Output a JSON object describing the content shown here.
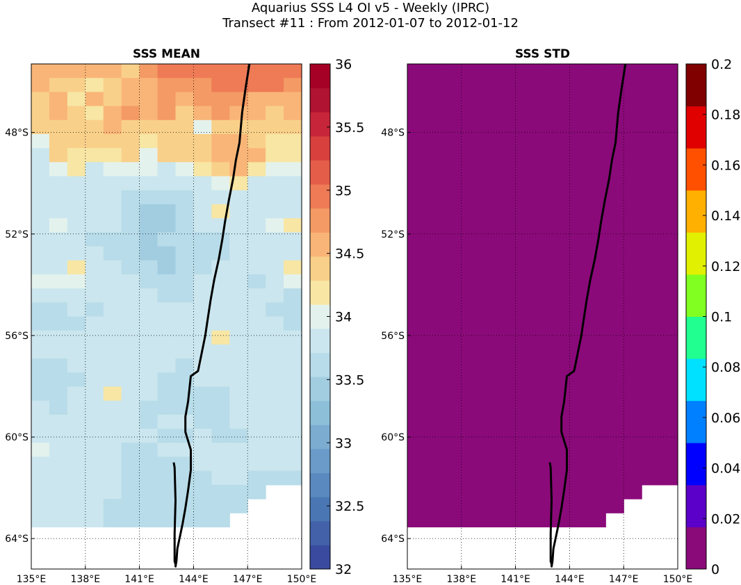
{
  "title_line1": "Aquarius SSS L4 OI v5 - Weekly (IPRC)",
  "title_line2": "Transect #11 : From 2012-01-07 to 2012-01-12",
  "chart_data": [
    {
      "type": "heatmap",
      "title": "SSS MEAN",
      "x_label_values": [
        135,
        138,
        141,
        144,
        147,
        150
      ],
      "x_tick_labels": [
        "135°E",
        "138°E",
        "141°E",
        "144°E",
        "147°E",
        "150°E"
      ],
      "y_label_values": [
        -48,
        -52,
        -56,
        -60,
        -64
      ],
      "y_tick_labels": [
        "48°S",
        "52°S",
        "56°S",
        "60°S",
        "64°S"
      ],
      "xlim": [
        135,
        150
      ],
      "ylim": [
        -65.2,
        -45.3
      ],
      "grid": true,
      "colorbar": {
        "min": 32,
        "max": 36,
        "ticks": [
          32,
          32.5,
          33,
          33.5,
          34,
          34.5,
          35,
          35.5,
          36
        ],
        "tick_labels": [
          "32",
          "32.5",
          "33",
          "33.5",
          "34",
          "34.5",
          "35",
          "35.5",
          "36"
        ],
        "colors": [
          "#3a4b9f",
          "#4261a9",
          "#4a77b4",
          "#5a89bf",
          "#6a9bc9",
          "#7cadd1",
          "#8dbfd9",
          "#a2cde1",
          "#b8dce9",
          "#cbe6ee",
          "#e4f2ed",
          "#f7e6a4",
          "#f9d08a",
          "#f9b577",
          "#f49a65",
          "#ee7b56",
          "#e45d49",
          "#d8403e",
          "#c7263a",
          "#b01331",
          "#a50026"
        ]
      },
      "value_rows_north_to_south": [
        [
          34.6,
          34.6,
          34.5,
          34.5,
          34.5,
          34.4,
          34.8,
          34.9,
          34.9,
          34.9,
          34.9,
          35.0,
          35.0,
          35.0,
          35.0
        ],
        [
          34.5,
          34.4,
          34.3,
          34.2,
          34.4,
          34.5,
          34.5,
          34.8,
          34.8,
          34.8,
          34.9,
          35.0,
          34.9,
          34.9,
          34.8
        ],
        [
          34.3,
          34.5,
          34.2,
          34.5,
          34.4,
          34.6,
          34.5,
          34.7,
          34.6,
          34.7,
          34.8,
          34.7,
          34.6,
          34.6,
          34.5
        ],
        [
          34.3,
          34.5,
          34.3,
          34.2,
          34.6,
          34.8,
          34.5,
          34.7,
          34.4,
          34.6,
          34.7,
          34.5,
          34.5,
          34.4,
          34.5
        ],
        [
          34.4,
          34.4,
          34.4,
          34.3,
          34.5,
          34.4,
          34.3,
          34.4,
          34.4,
          34.0,
          34.4,
          34.4,
          34.4,
          34.4,
          34.4
        ],
        [
          34.0,
          34.3,
          34.3,
          34.3,
          34.3,
          34.4,
          34.2,
          34.3,
          34.4,
          34.3,
          34.5,
          34.6,
          34.4,
          34.2,
          34.2
        ],
        [
          33.9,
          34.3,
          34.2,
          34.2,
          34.2,
          34.3,
          34.0,
          34.3,
          34.3,
          34.3,
          34.6,
          34.6,
          34.5,
          34.2,
          34.2
        ],
        [
          33.9,
          34.0,
          34.2,
          33.9,
          34.0,
          34.0,
          34.0,
          33.9,
          34.0,
          34.1,
          34.3,
          34.5,
          34.2,
          34.0,
          34.0
        ],
        [
          33.9,
          33.9,
          33.9,
          33.9,
          33.9,
          33.8,
          33.9,
          33.9,
          33.9,
          33.9,
          34.0,
          34.1,
          33.9,
          33.9,
          33.9
        ],
        [
          33.9,
          33.9,
          33.9,
          33.9,
          33.9,
          33.7,
          33.6,
          33.6,
          33.7,
          33.9,
          33.9,
          33.9,
          33.9,
          33.9,
          33.9
        ],
        [
          33.9,
          33.9,
          33.9,
          33.9,
          33.9,
          33.7,
          33.5,
          33.4,
          33.6,
          33.9,
          34.1,
          33.9,
          33.9,
          33.9,
          33.9
        ],
        [
          33.9,
          34.0,
          33.9,
          33.9,
          33.9,
          33.6,
          33.5,
          33.4,
          33.6,
          33.9,
          33.9,
          33.9,
          33.9,
          34.0,
          34.1
        ],
        [
          33.9,
          33.9,
          33.9,
          33.7,
          33.7,
          33.6,
          33.5,
          33.6,
          33.7,
          33.6,
          33.7,
          33.9,
          33.9,
          33.9,
          33.9
        ],
        [
          33.9,
          33.9,
          33.9,
          33.9,
          33.7,
          33.6,
          33.5,
          33.4,
          33.6,
          33.7,
          33.7,
          33.9,
          33.9,
          33.9,
          33.9
        ],
        [
          33.9,
          33.9,
          34.1,
          33.9,
          33.9,
          33.7,
          33.6,
          33.5,
          33.6,
          33.7,
          33.9,
          33.9,
          33.9,
          33.9,
          34.1
        ],
        [
          34.0,
          34.0,
          34.0,
          33.9,
          33.9,
          33.9,
          33.7,
          33.6,
          33.6,
          33.9,
          33.9,
          33.9,
          33.7,
          33.9,
          34.0
        ],
        [
          33.9,
          33.9,
          33.9,
          33.8,
          33.9,
          33.9,
          33.9,
          33.6,
          33.7,
          33.9,
          33.9,
          33.9,
          33.9,
          33.9,
          33.7
        ],
        [
          33.7,
          33.7,
          33.9,
          33.7,
          33.9,
          33.9,
          33.9,
          33.9,
          33.9,
          33.9,
          33.9,
          33.9,
          33.9,
          33.7,
          33.7
        ],
        [
          33.7,
          33.7,
          33.7,
          33.9,
          33.9,
          33.9,
          33.9,
          33.9,
          33.9,
          33.9,
          33.9,
          33.9,
          33.9,
          33.9,
          33.7
        ],
        [
          33.9,
          33.9,
          33.9,
          33.9,
          33.9,
          33.9,
          33.9,
          33.9,
          33.9,
          33.9,
          34.1,
          33.9,
          33.9,
          33.9,
          33.9
        ],
        [
          33.9,
          33.9,
          33.9,
          33.9,
          33.9,
          33.9,
          33.9,
          33.9,
          33.9,
          33.9,
          33.9,
          33.9,
          33.9,
          33.9,
          33.9
        ],
        [
          33.7,
          33.7,
          33.9,
          33.9,
          33.9,
          33.9,
          33.9,
          33.9,
          33.7,
          33.9,
          33.9,
          33.9,
          33.9,
          33.9,
          33.9
        ],
        [
          33.7,
          33.7,
          33.7,
          33.9,
          33.9,
          33.9,
          33.9,
          33.7,
          33.7,
          33.9,
          33.9,
          33.9,
          33.9,
          33.9,
          33.9
        ],
        [
          33.7,
          33.7,
          33.9,
          33.9,
          34.1,
          33.9,
          33.9,
          33.7,
          33.7,
          33.7,
          33.7,
          33.9,
          33.9,
          33.9,
          33.9
        ],
        [
          33.9,
          33.7,
          33.9,
          33.9,
          33.9,
          33.9,
          33.7,
          33.7,
          33.7,
          33.7,
          33.7,
          33.9,
          33.9,
          33.9,
          33.9
        ],
        [
          33.9,
          33.9,
          33.9,
          33.9,
          33.9,
          33.9,
          33.7,
          33.9,
          33.9,
          33.7,
          33.7,
          33.9,
          33.9,
          33.9,
          33.9
        ],
        [
          33.9,
          33.9,
          33.9,
          33.9,
          33.9,
          33.9,
          33.9,
          33.7,
          33.7,
          33.9,
          33.7,
          33.7,
          33.9,
          33.9,
          33.9
        ],
        [
          34.0,
          33.9,
          33.9,
          33.9,
          33.9,
          33.7,
          33.7,
          33.9,
          33.9,
          33.9,
          33.9,
          33.9,
          33.9,
          33.9,
          33.9
        ],
        [
          33.9,
          33.9,
          33.9,
          33.9,
          33.9,
          33.7,
          33.7,
          33.7,
          33.7,
          33.9,
          33.9,
          33.9,
          33.9,
          33.9,
          33.9
        ],
        [
          33.9,
          33.9,
          33.9,
          33.9,
          33.9,
          33.7,
          33.7,
          33.7,
          33.7,
          33.7,
          33.9,
          33.9,
          33.7,
          33.7,
          33.7
        ],
        [
          33.9,
          33.9,
          33.9,
          33.9,
          33.9,
          33.7,
          33.7,
          33.7,
          33.7,
          33.7,
          33.7,
          33.7,
          33.7,
          null,
          null
        ],
        [
          33.9,
          33.9,
          33.9,
          33.9,
          33.7,
          33.7,
          33.7,
          33.7,
          33.7,
          33.7,
          33.7,
          33.7,
          null,
          null,
          null
        ],
        [
          33.9,
          33.9,
          33.9,
          33.9,
          33.7,
          33.7,
          33.7,
          33.7,
          33.7,
          33.7,
          33.7,
          null,
          null,
          null,
          null
        ],
        [
          null,
          null,
          null,
          null,
          null,
          null,
          null,
          null,
          null,
          null,
          null,
          null,
          null,
          null,
          null
        ],
        [
          null,
          null,
          null,
          null,
          null,
          null,
          null,
          null,
          null,
          null,
          null,
          null,
          null,
          null,
          null
        ],
        [
          null,
          null,
          null,
          null,
          null,
          null,
          null,
          null,
          null,
          null,
          null,
          null,
          null,
          null,
          null
        ]
      ]
    },
    {
      "type": "heatmap",
      "title": "SSS STD",
      "x_label_values": [
        135,
        138,
        141,
        144,
        147,
        150
      ],
      "x_tick_labels": [
        "135°E",
        "138°E",
        "141°E",
        "144°E",
        "147°E",
        "150°E"
      ],
      "y_label_values": [
        -48,
        -52,
        -56,
        -60,
        -64
      ],
      "y_tick_labels": [
        "48°S",
        "52°S",
        "56°S",
        "60°S",
        "64°S"
      ],
      "xlim": [
        135,
        150
      ],
      "ylim": [
        -65.2,
        -45.3
      ],
      "grid": true,
      "fill_value": 0,
      "fill_color": "#8b0a7a",
      "valid_region_note": "field value 0 over the ocean area",
      "colorbar": {
        "min": 0,
        "max": 0.2,
        "ticks": [
          0,
          0.02,
          0.04,
          0.06,
          0.08,
          0.1,
          0.12,
          0.14,
          0.16,
          0.18,
          0.2
        ],
        "tick_labels": [
          "0",
          "0.02",
          "0.04",
          "0.06",
          "0.08",
          "0.1",
          "0.12",
          "0.14",
          "0.16",
          "0.18",
          "0.2"
        ],
        "colors": [
          "#8b0a7a",
          "#5a00c8",
          "#0000ff",
          "#0080ff",
          "#00e0ff",
          "#20ff90",
          "#80ff20",
          "#e0f000",
          "#ffb000",
          "#ff5000",
          "#e00000",
          "#800000"
        ]
      }
    }
  ],
  "transect": {
    "lon": [
      147.1,
      146.9,
      146.7,
      146.55,
      146.35,
      146.2,
      145.95,
      145.75,
      145.6,
      145.4,
      145.15,
      144.95,
      144.8,
      144.65,
      144.45,
      144.25,
      144.05,
      143.85,
      143.7,
      143.55,
      143.55,
      143.85,
      143.85,
      143.7,
      143.55,
      143.4,
      143.25,
      143.1,
      143.05,
      143.0,
      143.0,
      143.0,
      142.95,
      142.95,
      142.95,
      143.0,
      142.95,
      142.9
    ],
    "lat": [
      -45.3,
      -46.2,
      -47.2,
      -48.4,
      -49.1,
      -49.8,
      -50.7,
      -51.5,
      -52.2,
      -53.0,
      -53.8,
      -54.6,
      -55.3,
      -56.0,
      -56.7,
      -57.4,
      -57.5,
      -57.6,
      -58.6,
      -59.2,
      -59.8,
      -60.5,
      -61.3,
      -62.1,
      -62.8,
      -63.4,
      -63.9,
      -64.4,
      -64.9,
      -65.1,
      -65.1,
      -65.0,
      -64.9,
      -64.5,
      -63.8,
      -62.5,
      -61.2,
      -61.0
    ]
  }
}
